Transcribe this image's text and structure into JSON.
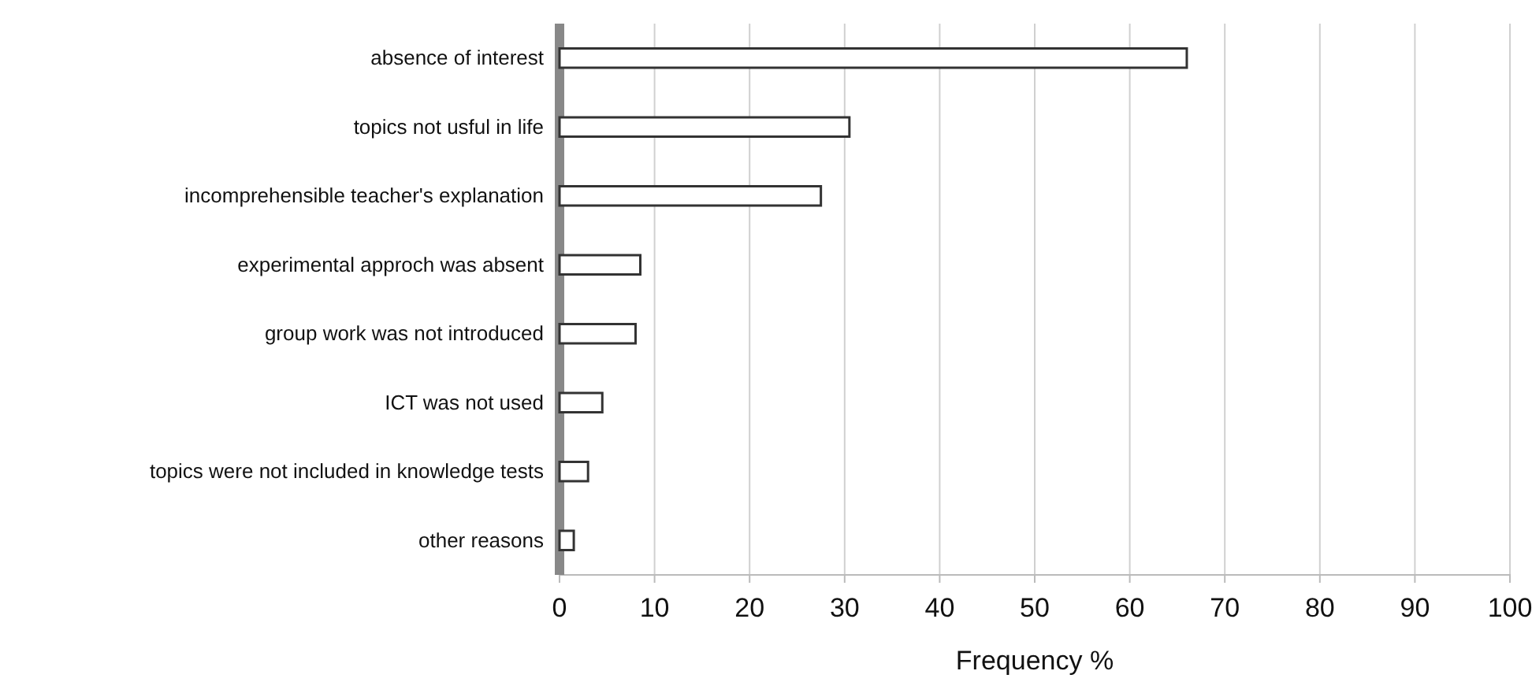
{
  "chart_data": {
    "type": "bar",
    "orientation": "horizontal",
    "xlabel": "Frequency %",
    "categories": [
      "absence of interest",
      "topics not usful in life",
      "incomprehensible teacher's explanation",
      "experimental approch was absent",
      "group work was not introduced",
      "ICT was not used",
      "topics were not included in knowledge tests",
      "other reasons"
    ],
    "values": [
      66,
      30.5,
      27.5,
      8.5,
      8,
      4.5,
      3,
      1.5
    ],
    "color": "#ffffff",
    "xlim": [
      0,
      100
    ],
    "xticks": [
      0,
      10,
      20,
      30,
      40,
      50,
      60,
      70,
      80,
      90,
      100
    ],
    "grid": "x"
  }
}
